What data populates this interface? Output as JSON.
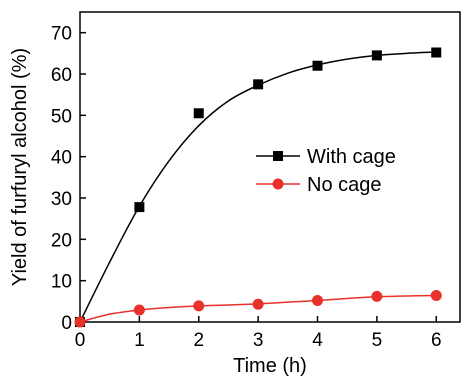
{
  "chart_data": {
    "type": "scatter",
    "title": "",
    "xlabel": "Time (h)",
    "ylabel": "Yield of furfuryl alcohol (%)",
    "xlim": [
      0,
      6.4
    ],
    "ylim": [
      0,
      75
    ],
    "xticks": [
      0,
      1,
      2,
      3,
      4,
      5,
      6
    ],
    "yticks": [
      0,
      10,
      20,
      30,
      40,
      50,
      60,
      70
    ],
    "grid": false,
    "legend_position": "center-right",
    "series": [
      {
        "name": "With cage",
        "color": "#000000",
        "marker": "square",
        "x": [
          0,
          1,
          2,
          3,
          4,
          5,
          6
        ],
        "y": [
          0,
          27.8,
          50.5,
          57.5,
          62,
          64.5,
          65.2
        ],
        "fit_x": [
          0,
          0.5,
          1,
          1.5,
          2,
          2.5,
          3,
          3.5,
          4,
          4.5,
          5,
          5.5,
          6
        ],
        "fit_y": [
          0,
          14.5,
          28,
          39,
          47.5,
          53.5,
          57.3,
          60.2,
          62.2,
          63.6,
          64.5,
          65.0,
          65.3
        ]
      },
      {
        "name": "No cage",
        "color": "#e8312a",
        "marker": "circle",
        "x": [
          0,
          1,
          2,
          3,
          4,
          5,
          6
        ],
        "y": [
          0,
          2.9,
          3.9,
          4.3,
          5.2,
          6.2,
          6.4
        ],
        "fit_x": [
          0,
          0.5,
          1,
          1.5,
          2,
          2.5,
          3,
          3.5,
          4,
          4.5,
          5,
          5.5,
          6
        ],
        "fit_y": [
          0,
          1.9,
          2.9,
          3.5,
          3.9,
          4.1,
          4.4,
          4.8,
          5.2,
          5.7,
          6.1,
          6.3,
          6.4
        ]
      }
    ]
  }
}
